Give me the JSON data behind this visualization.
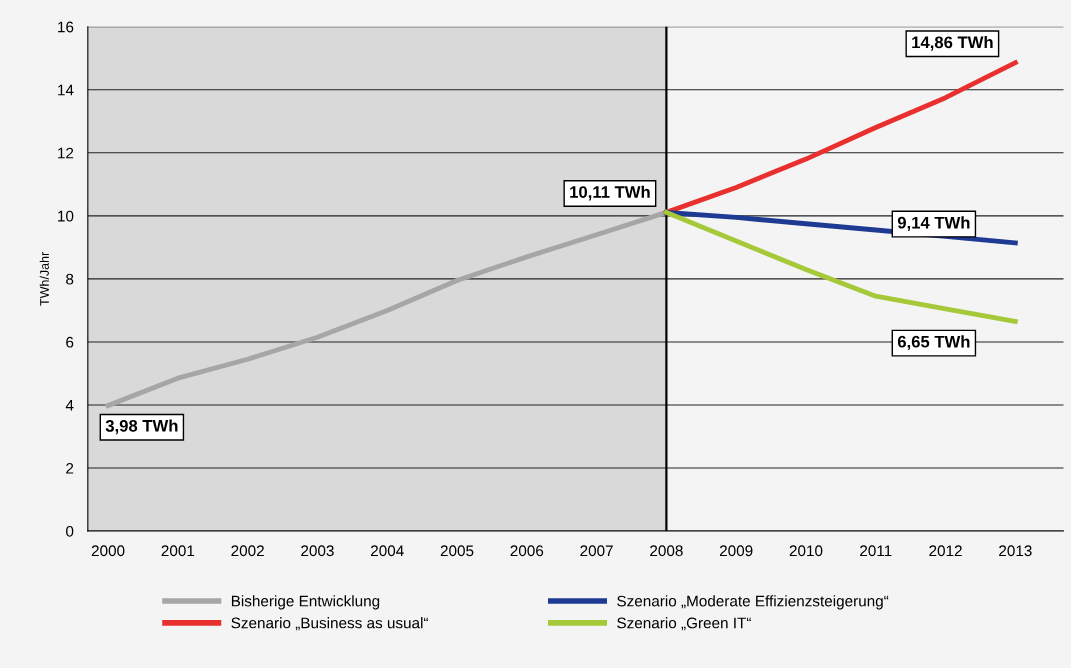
{
  "chart_data": {
    "type": "line",
    "ylabel": "TWh/Jahr",
    "xlim": [
      1999.71,
      2013.69
    ],
    "xticks": [
      2000,
      2001,
      2002,
      2003,
      2004,
      2005,
      2006,
      2007,
      2008,
      2009,
      2010,
      2011,
      2012,
      2013
    ],
    "ylim": [
      0,
      16
    ],
    "yticks": [
      0,
      2,
      4,
      6,
      8,
      10,
      12,
      14,
      16
    ],
    "grid": "y",
    "legend": "bottom",
    "series": [
      {
        "name": "Bisherige Entwicklung",
        "color": "#a6a6a6",
        "x": [
          2000,
          2001,
          2002,
          2003,
          2004,
          2005,
          2006,
          2007,
          2008
        ],
        "values": [
          3.98,
          4.85,
          5.45,
          6.15,
          7.0,
          7.95,
          8.7,
          9.4,
          10.11
        ]
      },
      {
        "name": "Szenario „Business as usual“",
        "color": "#e8312f",
        "x": [
          2008,
          2009,
          2010,
          2011,
          2012,
          2013
        ],
        "values": [
          10.11,
          10.9,
          11.8,
          12.8,
          13.75,
          14.86
        ]
      },
      {
        "name": "Szenario „Moderate Effizienzsteigerung“",
        "color": "#1f3a93",
        "x": [
          2008,
          2009,
          2010,
          2011,
          2012,
          2013
        ],
        "values": [
          10.11,
          9.95,
          9.75,
          9.55,
          9.35,
          9.14
        ]
      },
      {
        "name": "Szenario „Green IT“",
        "color": "#a6c93a",
        "x": [
          2008,
          2009,
          2010,
          2011,
          2012,
          2013
        ],
        "values": [
          10.11,
          9.2,
          8.3,
          7.45,
          7.05,
          6.65
        ]
      }
    ],
    "bands": [
      {
        "axis": "x",
        "from": 1999.71,
        "to": 2008,
        "color": "#d9d9d9"
      }
    ],
    "ref_lines": [
      {
        "axis": "x",
        "value": 2008,
        "color": "#000000"
      }
    ],
    "annotations": [
      {
        "text": "3,98 TWh",
        "x": 2000,
        "y": 3.98
      },
      {
        "text": "10,11 TWh",
        "x": 2008,
        "y": 10.11
      },
      {
        "text": "14,86 TWh",
        "x": 2013,
        "y": 14.86
      },
      {
        "text": "9,14 TWh",
        "x": 2013,
        "y": 9.14
      },
      {
        "text": "6,65 TWh",
        "x": 2013,
        "y": 6.65
      }
    ]
  }
}
